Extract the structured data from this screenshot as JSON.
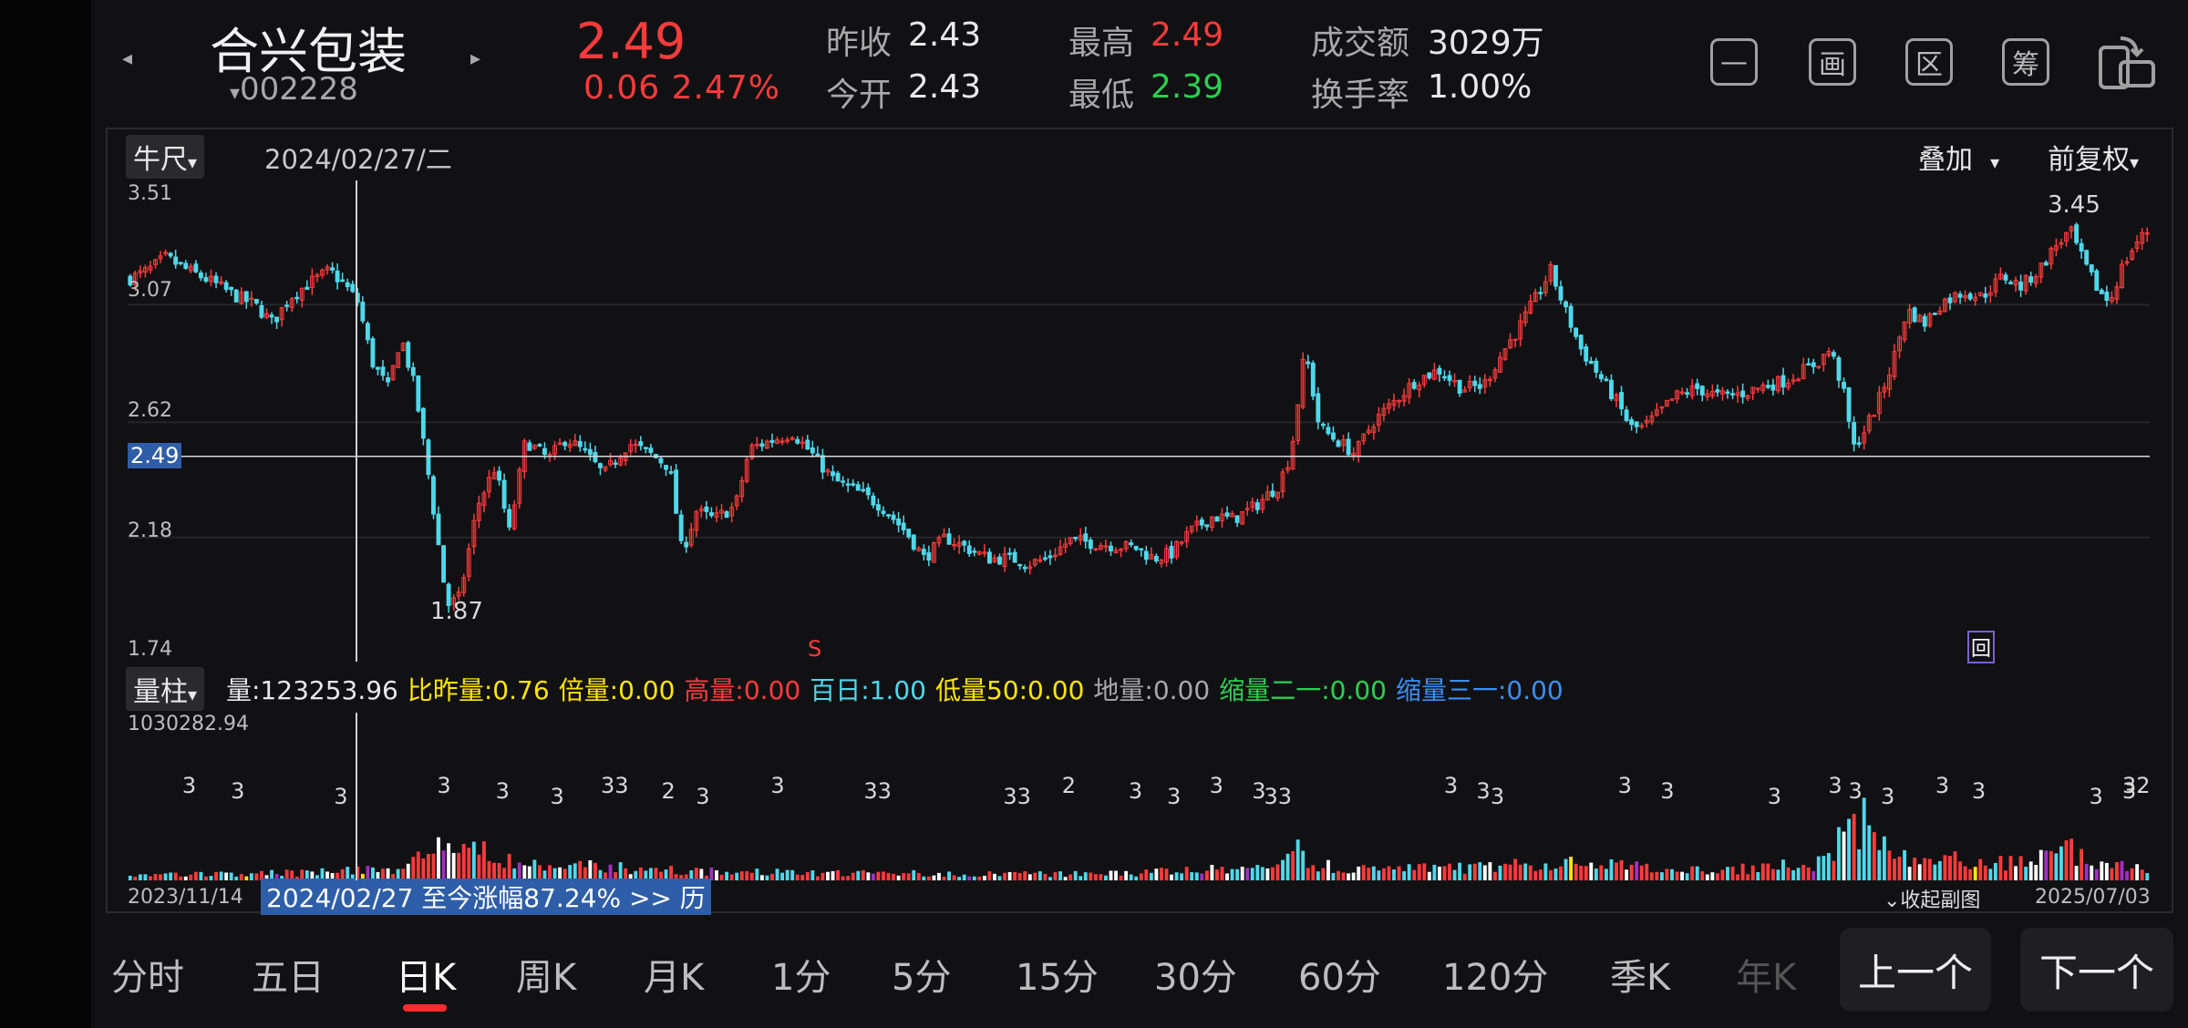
{
  "header": {
    "stock_name": "合兴包装",
    "stock_code": "002228",
    "price": "2.49",
    "change_abs": "0.06",
    "change_pct": "2.47%",
    "prev_close_label": "昨收",
    "prev_close": "2.43",
    "open_label": "今开",
    "open": "2.43",
    "high_label": "最高",
    "high": "2.49",
    "low_label": "最低",
    "low": "2.39",
    "turnover_amount_label": "成交额",
    "turnover_amount": "3029万",
    "turnover_rate_label": "换手率",
    "turnover_rate": "1.00%",
    "prev_arrow": "◂",
    "next_arrow": "▸",
    "code_caret": "▾"
  },
  "toolbar": {
    "icons": [
      "minimize-icon",
      "draw-icon",
      "zone-icon",
      "chip-icon",
      "rotate-screen-icon"
    ],
    "minimize_glyph": "—",
    "draw_glyph": "画",
    "zone_glyph": "区",
    "chip_glyph": "筹"
  },
  "kline": {
    "indicator_btn": "牛尺",
    "date": "2024/02/27/二",
    "overlay_btn": "叠加",
    "adjust_btn": "前复权",
    "y_ticks": [
      "3.51",
      "3.07",
      "2.62",
      "2.18",
      "1.74"
    ],
    "current_price_tag": "2.49",
    "max_label": "3.45",
    "min_label": "1.87",
    "sell_marker": "S",
    "back_marker": "回",
    "y_range": [
      1.74,
      3.51
    ]
  },
  "volume": {
    "indicator_btn": "量柱",
    "items": [
      {
        "text": "量:123253.96",
        "color": "#e8e8e8"
      },
      {
        "text": "比昨量:0.76",
        "color": "#ffe600"
      },
      {
        "text": "倍量:0.00",
        "color": "#ffe600"
      },
      {
        "text": "高量:0.00",
        "color": "#ff3b3b"
      },
      {
        "text": "百日:1.00",
        "color": "#4fd8ea"
      },
      {
        "text": "低量50:0.00",
        "color": "#ffe600"
      },
      {
        "text": "地量:0.00",
        "color": "#a8a8a8"
      },
      {
        "text": "缩量二一:0.00",
        "color": "#2bd04f"
      },
      {
        "text": "缩量三一:0.00",
        "color": "#3a8ff5"
      }
    ],
    "max_label": "1030282.94",
    "markers": [
      "3",
      "3",
      "3",
      "3",
      "3",
      "3",
      "33",
      "2",
      "3",
      "3",
      "33",
      "33",
      "2",
      "3",
      "3",
      "3",
      "3",
      "33",
      "3",
      "3",
      "3",
      "3",
      "3",
      "3",
      "3",
      "3",
      "3",
      "3",
      "3",
      "3",
      "32",
      "3"
    ]
  },
  "footer": {
    "start_date": "2023/11/14",
    "banner": "2024/02/27 至今涨幅87.24%  >> 历",
    "collapse": "⌄收起副图",
    "end_date": "2025/07/03"
  },
  "nav": {
    "tabs": [
      "分时",
      "五日",
      "日K",
      "周K",
      "月K",
      "1分",
      "5分",
      "15分",
      "30分",
      "60分",
      "120分",
      "季K",
      "年K"
    ],
    "active_tab": "日K",
    "prev_btn": "上一个",
    "next_btn": "下一个"
  },
  "colors": {
    "up": "#ff3b3b",
    "down": "#4fd8ea",
    "background": "#111114",
    "accent": "#ff2d2d"
  },
  "chart_data": {
    "type": "candlestick",
    "x_range": [
      "2023/11/14",
      "2025/07/03"
    ],
    "y_range": [
      1.74,
      3.51
    ],
    "crosshair_date": "2024/02/27",
    "price_path": [
      [
        0.0,
        3.17
      ],
      [
        0.01,
        3.2
      ],
      [
        0.02,
        3.25
      ],
      [
        0.03,
        3.21
      ],
      [
        0.045,
        3.16
      ],
      [
        0.06,
        3.1
      ],
      [
        0.07,
        3.07
      ],
      [
        0.08,
        3.0
      ],
      [
        0.09,
        3.1
      ],
      [
        0.1,
        3.15
      ],
      [
        0.112,
        3.2
      ],
      [
        0.12,
        3.15
      ],
      [
        0.128,
        3.08
      ],
      [
        0.136,
        2.85
      ],
      [
        0.145,
        2.75
      ],
      [
        0.152,
        2.95
      ],
      [
        0.16,
        2.75
      ],
      [
        0.168,
        2.4
      ],
      [
        0.178,
        1.92
      ],
      [
        0.185,
        1.95
      ],
      [
        0.195,
        2.3
      ],
      [
        0.205,
        2.45
      ],
      [
        0.213,
        2.2
      ],
      [
        0.222,
        2.55
      ],
      [
        0.235,
        2.48
      ],
      [
        0.245,
        2.56
      ],
      [
        0.256,
        2.5
      ],
      [
        0.266,
        2.42
      ],
      [
        0.28,
        2.54
      ],
      [
        0.292,
        2.5
      ],
      [
        0.303,
        2.45
      ],
      [
        0.31,
        2.12
      ],
      [
        0.318,
        2.28
      ],
      [
        0.328,
        2.25
      ],
      [
        0.34,
        2.3
      ],
      [
        0.348,
        2.52
      ],
      [
        0.36,
        2.55
      ],
      [
        0.372,
        2.58
      ],
      [
        0.383,
        2.5
      ],
      [
        0.395,
        2.4
      ],
      [
        0.41,
        2.35
      ],
      [
        0.422,
        2.3
      ],
      [
        0.436,
        2.2
      ],
      [
        0.446,
        2.1
      ],
      [
        0.458,
        2.18
      ],
      [
        0.47,
        2.14
      ],
      [
        0.482,
        2.1
      ],
      [
        0.495,
        2.1
      ],
      [
        0.505,
        2.08
      ],
      [
        0.515,
        2.1
      ],
      [
        0.528,
        2.17
      ],
      [
        0.54,
        2.16
      ],
      [
        0.552,
        2.15
      ],
      [
        0.565,
        2.14
      ],
      [
        0.575,
        2.1
      ],
      [
        0.585,
        2.12
      ],
      [
        0.595,
        2.2
      ],
      [
        0.608,
        2.26
      ],
      [
        0.62,
        2.25
      ],
      [
        0.632,
        2.3
      ],
      [
        0.645,
        2.38
      ],
      [
        0.652,
        2.5
      ],
      [
        0.66,
        2.9
      ],
      [
        0.668,
        2.6
      ],
      [
        0.678,
        2.55
      ],
      [
        0.688,
        2.5
      ],
      [
        0.698,
        2.62
      ],
      [
        0.71,
        2.7
      ],
      [
        0.722,
        2.78
      ],
      [
        0.735,
        2.82
      ],
      [
        0.748,
        2.75
      ],
      [
        0.76,
        2.76
      ],
      [
        0.772,
        2.9
      ],
      [
        0.78,
        2.98
      ],
      [
        0.79,
        3.1
      ],
      [
        0.798,
        3.2
      ],
      [
        0.806,
        3.05
      ],
      [
        0.815,
        2.9
      ],
      [
        0.825,
        2.8
      ],
      [
        0.835,
        2.7
      ],
      [
        0.843,
        2.6
      ],
      [
        0.85,
        2.6
      ],
      [
        0.858,
        2.65
      ],
      [
        0.868,
        2.72
      ],
      [
        0.88,
        2.75
      ],
      [
        0.892,
        2.72
      ],
      [
        0.905,
        2.73
      ],
      [
        0.918,
        2.76
      ],
      [
        0.93,
        2.78
      ],
      [
        0.94,
        2.82
      ],
      [
        0.948,
        2.85
      ],
      [
        0.955,
        2.9
      ],
      [
        0.962,
        2.75
      ],
      [
        0.968,
        2.52
      ],
      [
        0.975,
        2.6
      ],
      [
        0.982,
        2.7
      ],
      [
        0.99,
        2.85
      ],
      [
        0.998,
        3.05
      ],
      [
        1.008,
        3.0
      ],
      [
        1.018,
        3.08
      ],
      [
        1.03,
        3.12
      ],
      [
        1.04,
        3.1
      ],
      [
        1.052,
        3.18
      ],
      [
        1.062,
        3.14
      ],
      [
        1.072,
        3.2
      ],
      [
        1.082,
        3.3
      ],
      [
        1.09,
        3.35
      ],
      [
        1.098,
        3.22
      ],
      [
        1.106,
        3.12
      ],
      [
        1.112,
        3.08
      ],
      [
        1.118,
        3.2
      ],
      [
        1.126,
        3.3
      ],
      [
        1.133,
        3.35
      ]
    ],
    "volume_profile": [
      [
        0.0,
        0.05
      ],
      [
        0.1,
        0.07
      ],
      [
        0.15,
        0.12
      ],
      [
        0.18,
        0.33
      ],
      [
        0.2,
        0.3
      ],
      [
        0.21,
        0.18
      ],
      [
        0.24,
        0.14
      ],
      [
        0.3,
        0.1
      ],
      [
        0.33,
        0.08
      ],
      [
        0.4,
        0.07
      ],
      [
        0.48,
        0.06
      ],
      [
        0.54,
        0.06
      ],
      [
        0.58,
        0.08
      ],
      [
        0.64,
        0.12
      ],
      [
        0.655,
        0.33
      ],
      [
        0.665,
        0.15
      ],
      [
        0.7,
        0.1
      ],
      [
        0.76,
        0.12
      ],
      [
        0.8,
        0.16
      ],
      [
        0.84,
        0.13
      ],
      [
        0.9,
        0.1
      ],
      [
        0.95,
        0.16
      ],
      [
        0.972,
        0.6
      ],
      [
        0.98,
        0.35
      ],
      [
        1.0,
        0.2
      ],
      [
        1.06,
        0.16
      ],
      [
        1.09,
        0.3
      ],
      [
        1.1,
        0.14
      ],
      [
        1.133,
        0.12
      ]
    ]
  }
}
